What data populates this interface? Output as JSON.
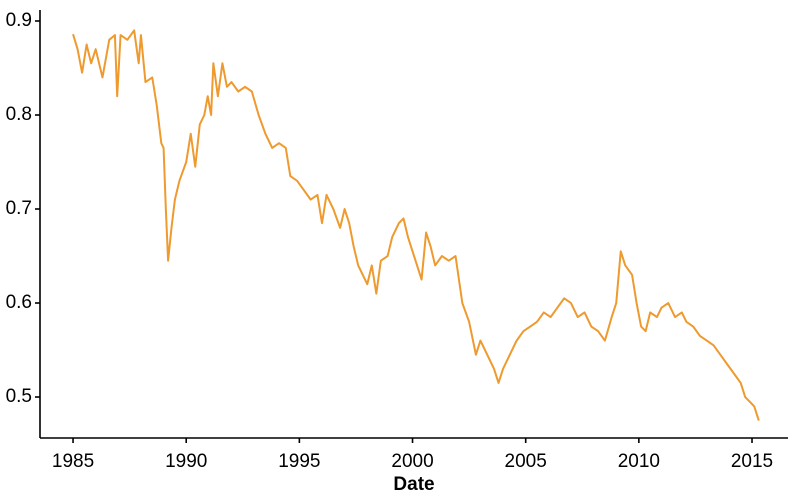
{
  "chart_data": {
    "type": "line",
    "x_label": "Date",
    "color": "#EE9A2E",
    "x": [
      1985.0,
      1985.2,
      1985.4,
      1985.6,
      1985.8,
      1986.0,
      1986.3,
      1986.6,
      1986.85,
      1986.95,
      1987.1,
      1987.4,
      1987.7,
      1987.9,
      1988.0,
      1988.2,
      1988.5,
      1988.7,
      1988.9,
      1989.0,
      1989.1,
      1989.2,
      1989.35,
      1989.5,
      1989.7,
      1990.0,
      1990.2,
      1990.4,
      1990.6,
      1990.8,
      1990.95,
      1991.1,
      1991.2,
      1991.4,
      1991.6,
      1991.8,
      1992.0,
      1992.3,
      1992.6,
      1992.9,
      1993.2,
      1993.5,
      1993.8,
      1994.1,
      1994.4,
      1994.6,
      1994.9,
      1995.2,
      1995.5,
      1995.8,
      1996.0,
      1996.2,
      1996.5,
      1996.8,
      1997.0,
      1997.2,
      1997.4,
      1997.6,
      1997.8,
      1998.0,
      1998.2,
      1998.4,
      1998.6,
      1998.9,
      1999.1,
      1999.4,
      1999.6,
      1999.8,
      2000.0,
      2000.2,
      2000.4,
      2000.6,
      2000.8,
      2001.0,
      2001.3,
      2001.6,
      2001.9,
      2002.2,
      2002.5,
      2002.8,
      2003.0,
      2003.3,
      2003.6,
      2003.8,
      2004.0,
      2004.3,
      2004.6,
      2004.9,
      2005.2,
      2005.5,
      2005.8,
      2006.1,
      2006.4,
      2006.7,
      2007.0,
      2007.3,
      2007.6,
      2007.9,
      2008.2,
      2008.5,
      2008.8,
      2009.0,
      2009.2,
      2009.4,
      2009.7,
      2009.9,
      2010.1,
      2010.3,
      2010.5,
      2010.8,
      2011.0,
      2011.3,
      2011.6,
      2011.9,
      2012.1,
      2012.4,
      2012.7,
      2013.0,
      2013.3,
      2013.6,
      2013.9,
      2014.2,
      2014.5,
      2014.7,
      2014.9,
      2015.1,
      2015.3
    ],
    "values": [
      0.886,
      0.87,
      0.845,
      0.875,
      0.855,
      0.87,
      0.84,
      0.88,
      0.885,
      0.82,
      0.885,
      0.88,
      0.89,
      0.855,
      0.885,
      0.835,
      0.84,
      0.81,
      0.77,
      0.765,
      0.7,
      0.645,
      0.68,
      0.71,
      0.73,
      0.75,
      0.78,
      0.745,
      0.79,
      0.8,
      0.82,
      0.8,
      0.855,
      0.82,
      0.855,
      0.83,
      0.835,
      0.825,
      0.83,
      0.825,
      0.8,
      0.78,
      0.765,
      0.77,
      0.765,
      0.735,
      0.73,
      0.72,
      0.71,
      0.715,
      0.685,
      0.715,
      0.7,
      0.68,
      0.7,
      0.685,
      0.66,
      0.64,
      0.63,
      0.62,
      0.64,
      0.61,
      0.645,
      0.65,
      0.67,
      0.685,
      0.69,
      0.67,
      0.655,
      0.64,
      0.625,
      0.675,
      0.66,
      0.64,
      0.65,
      0.645,
      0.65,
      0.6,
      0.58,
      0.545,
      0.56,
      0.545,
      0.53,
      0.515,
      0.53,
      0.545,
      0.56,
      0.57,
      0.575,
      0.58,
      0.59,
      0.585,
      0.595,
      0.605,
      0.6,
      0.585,
      0.59,
      0.575,
      0.57,
      0.56,
      0.585,
      0.6,
      0.655,
      0.64,
      0.63,
      0.6,
      0.575,
      0.57,
      0.59,
      0.585,
      0.595,
      0.6,
      0.585,
      0.59,
      0.58,
      0.575,
      0.565,
      0.56,
      0.555,
      0.545,
      0.535,
      0.525,
      0.515,
      0.5,
      0.495,
      0.49,
      0.475
    ],
    "xlim": [
      1983.54,
      2016.59
    ],
    "xticks": [
      1985,
      1990,
      1995,
      2000,
      2005,
      2010,
      2015
    ],
    "ylim": [
      0.4564,
      0.9117
    ],
    "yticks": [
      0.5,
      0.6,
      0.7,
      0.8,
      0.9
    ]
  }
}
